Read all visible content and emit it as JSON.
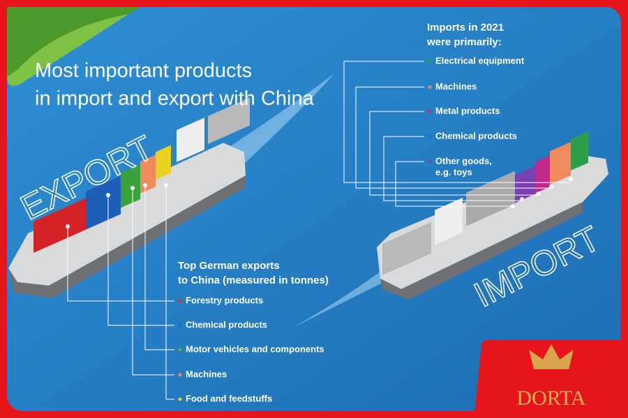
{
  "title": {
    "lines": [
      "Most important products",
      "in import and export with China"
    ]
  },
  "export": {
    "word": "EXPORT",
    "heading": [
      "Top German exports",
      "to China (measured in tonnes)"
    ],
    "items": [
      {
        "label": [
          "Forestry products"
        ],
        "color": "#e8262a"
      },
      {
        "label": [
          "Chemical products"
        ],
        "color": "#1f6fd1"
      },
      {
        "label": [
          "Motor vehicles and components"
        ],
        "color": "#55b83a"
      },
      {
        "label": [
          "Machines"
        ],
        "color": "#f08a5d"
      },
      {
        "label": [
          "Food and feedstuffs"
        ],
        "color": "#e6d21f"
      }
    ]
  },
  "import": {
    "word": "IMPORT",
    "heading": [
      "Imports in 2021",
      "were primarily:"
    ],
    "items": [
      {
        "label": [
          "Electrical equipment"
        ],
        "color": "#2e9e4a"
      },
      {
        "label": [
          "Machines"
        ],
        "color": "#f08a5d"
      },
      {
        "label": [
          "Metal products"
        ],
        "color": "#c42a8c"
      },
      {
        "label": [
          "Chemical products"
        ],
        "color": "#1f6fd1"
      },
      {
        "label": [
          "Other goods,",
          "e.g. toys"
        ],
        "color": "#7a3fb0"
      }
    ]
  },
  "logo": {
    "text": "DORTA"
  }
}
